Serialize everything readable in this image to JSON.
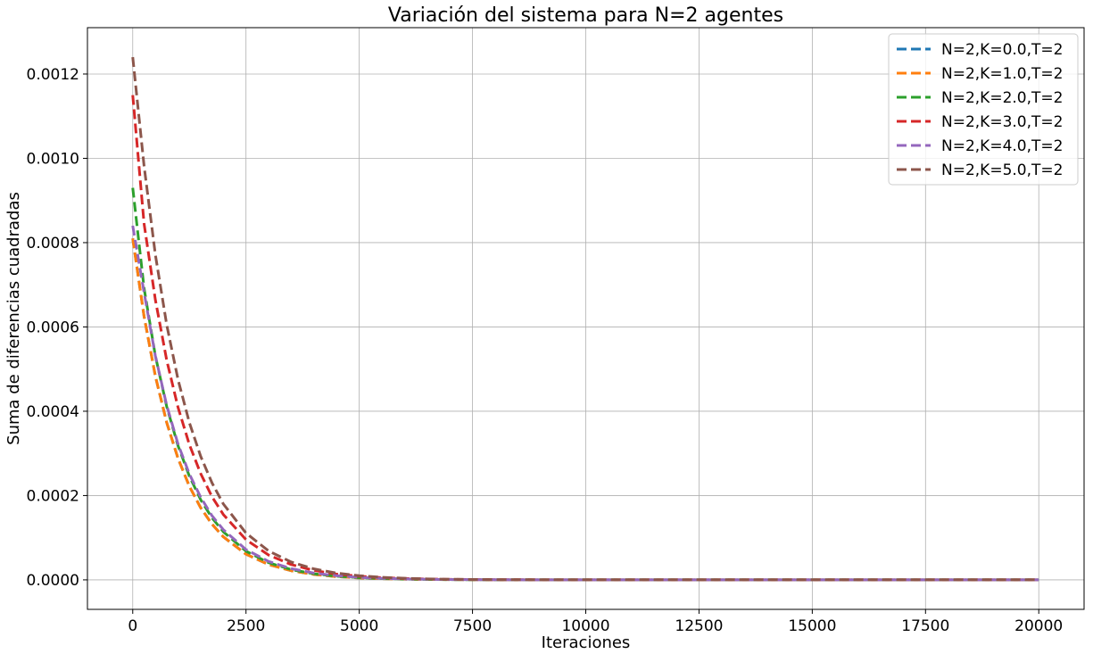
{
  "chart_data": {
    "type": "line",
    "title": "Variación del sistema para N=2 agentes",
    "xlabel": "Iteraciones",
    "ylabel": "Suma de diferencias cuadradas",
    "xlim": [
      -1000,
      21000
    ],
    "ylim": [
      -7e-05,
      0.00131
    ],
    "xticks": [
      0,
      2500,
      5000,
      7500,
      10000,
      12500,
      15000,
      17500,
      20000
    ],
    "xtick_labels": [
      "0",
      "2500",
      "5000",
      "7500",
      "10000",
      "12500",
      "15000",
      "17500",
      "20000"
    ],
    "yticks": [
      0,
      0.0002,
      0.0004,
      0.0006,
      0.0008,
      0.001,
      0.0012
    ],
    "ytick_labels": [
      "0.0000",
      "0.0002",
      "0.0004",
      "0.0006",
      "0.0008",
      "0.0010",
      "0.0012"
    ],
    "grid": true,
    "legend_position": "top-right",
    "line_style": "dashed",
    "x": [
      0,
      250,
      500,
      750,
      1000,
      1250,
      1500,
      1750,
      2000,
      2500,
      3000,
      3500,
      4000,
      4500,
      5000,
      5500,
      6000,
      6500,
      7000,
      7500,
      8000,
      9000,
      10000,
      11000,
      12000,
      13000,
      14000,
      15000,
      16000,
      17000,
      18000,
      19000,
      20000
    ],
    "series": [
      {
        "name": "N=2,K=0.0,T=2",
        "color": "#1f77b4",
        "values": [
          0.00081,
          0.000625,
          0.000483,
          0.000373,
          0.000288,
          0.000222,
          0.000171,
          0.000132,
          0.000102,
          6.09e-05,
          3.63e-05,
          2.16e-05,
          1.29e-05,
          7.7e-06,
          4.6e-06,
          2.7e-06,
          1.6e-06,
          1e-06,
          6e-07,
          3e-07,
          2e-07,
          1e-07,
          0.0,
          0.0,
          0.0,
          0.0,
          0.0,
          0.0,
          0.0,
          0.0,
          0.0,
          0.0,
          0.0
        ]
      },
      {
        "name": "N=2,K=1.0,T=2",
        "color": "#ff7f0e",
        "values": [
          0.00081,
          0.000625,
          0.000483,
          0.000373,
          0.000288,
          0.000222,
          0.000171,
          0.000132,
          0.000102,
          6.09e-05,
          3.63e-05,
          2.16e-05,
          1.29e-05,
          7.7e-06,
          4.6e-06,
          2.7e-06,
          1.6e-06,
          1e-06,
          6e-07,
          3e-07,
          2e-07,
          1e-07,
          0.0,
          0.0,
          0.0,
          0.0,
          0.0,
          0.0,
          0.0,
          0.0,
          0.0,
          0.0,
          0.0
        ]
      },
      {
        "name": "N=2,K=2.0,T=2",
        "color": "#2ca02c",
        "values": [
          0.00093,
          0.000692,
          0.000531,
          0.000411,
          0.000318,
          0.000246,
          0.00019,
          0.000147,
          0.000114,
          6.81e-05,
          4.07e-05,
          2.43e-05,
          1.45e-05,
          8.7e-06,
          5.2e-06,
          3.1e-06,
          1.8e-06,
          1.1e-06,
          7e-07,
          4e-07,
          2e-07,
          1e-07,
          0.0,
          0.0,
          0.0,
          0.0,
          0.0,
          0.0,
          0.0,
          0.0,
          0.0,
          0.0,
          0.0
        ]
      },
      {
        "name": "N=2,K=3.0,T=2",
        "color": "#d62728",
        "values": [
          0.00115,
          0.000845,
          0.000664,
          0.000521,
          0.000409,
          0.000321,
          0.000252,
          0.000197,
          0.000155,
          9.54e-05,
          5.88e-05,
          3.62e-05,
          2.23e-05,
          1.37e-05,
          8.5e-06,
          5.2e-06,
          3.2e-06,
          2e-06,
          1.2e-06,
          7e-07,
          5e-07,
          2e-07,
          1e-07,
          0.0,
          0.0,
          0.0,
          0.0,
          0.0,
          0.0,
          0.0,
          0.0,
          0.0,
          0.0
        ]
      },
      {
        "name": "N=2,K=4.0,T=2",
        "color": "#9467bd",
        "values": [
          0.00084,
          0.000682,
          0.000531,
          0.000414,
          0.000322,
          0.000251,
          0.000196,
          0.000152,
          0.000119,
          7.19e-05,
          4.37e-05,
          2.65e-05,
          1.61e-05,
          9.8e-06,
          5.9e-06,
          3.6e-06,
          2.2e-06,
          1.3e-06,
          8e-07,
          5e-07,
          3e-07,
          1e-07,
          0.0,
          0.0,
          0.0,
          0.0,
          0.0,
          0.0,
          0.0,
          0.0,
          0.0,
          0.0,
          0.0
        ]
      },
      {
        "name": "N=2,K=5.0,T=2",
        "color": "#8c564b",
        "values": [
          0.00124,
          0.000982,
          0.000771,
          0.000605,
          0.000475,
          0.000373,
          0.000293,
          0.00023,
          0.00018,
          0.000111,
          6.85e-05,
          4.22e-05,
          2.6e-05,
          1.6e-05,
          9.9e-06,
          6.1e-06,
          3.7e-06,
          2.3e-06,
          1.4e-06,
          9e-07,
          5e-07,
          2e-07,
          1e-07,
          0.0,
          0.0,
          0.0,
          0.0,
          0.0,
          0.0,
          0.0,
          0.0,
          0.0,
          0.0
        ]
      }
    ]
  }
}
